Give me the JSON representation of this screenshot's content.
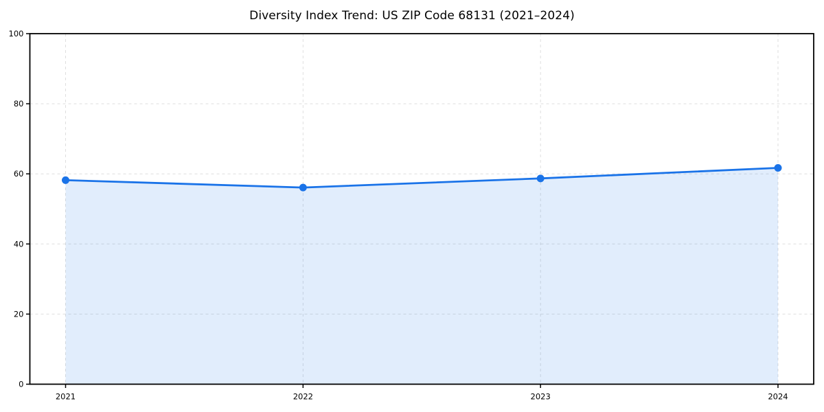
{
  "chart_data": {
    "type": "area",
    "title": "Diversity Index Trend: US ZIP Code 68131 (2021–2024)",
    "categories": [
      "2021",
      "2022",
      "2023",
      "2024"
    ],
    "series": [
      {
        "name": "Diversity Index",
        "values": [
          58.2,
          56.1,
          58.7,
          61.7
        ]
      }
    ],
    "xlabel": "",
    "ylabel": "",
    "ylim": [
      0,
      100
    ],
    "yticks": [
      0,
      20,
      40,
      60,
      80,
      100
    ],
    "grid": "on",
    "grid_style": "dashed",
    "legend_position": "none",
    "colors": {
      "line": "#1a73e8",
      "marker": "#1a73e8",
      "area_fill": "rgba(26,115,232,0.13)",
      "gridline": "#dedede",
      "spine": "#000000",
      "text": "#000000",
      "background": "#ffffff"
    }
  }
}
